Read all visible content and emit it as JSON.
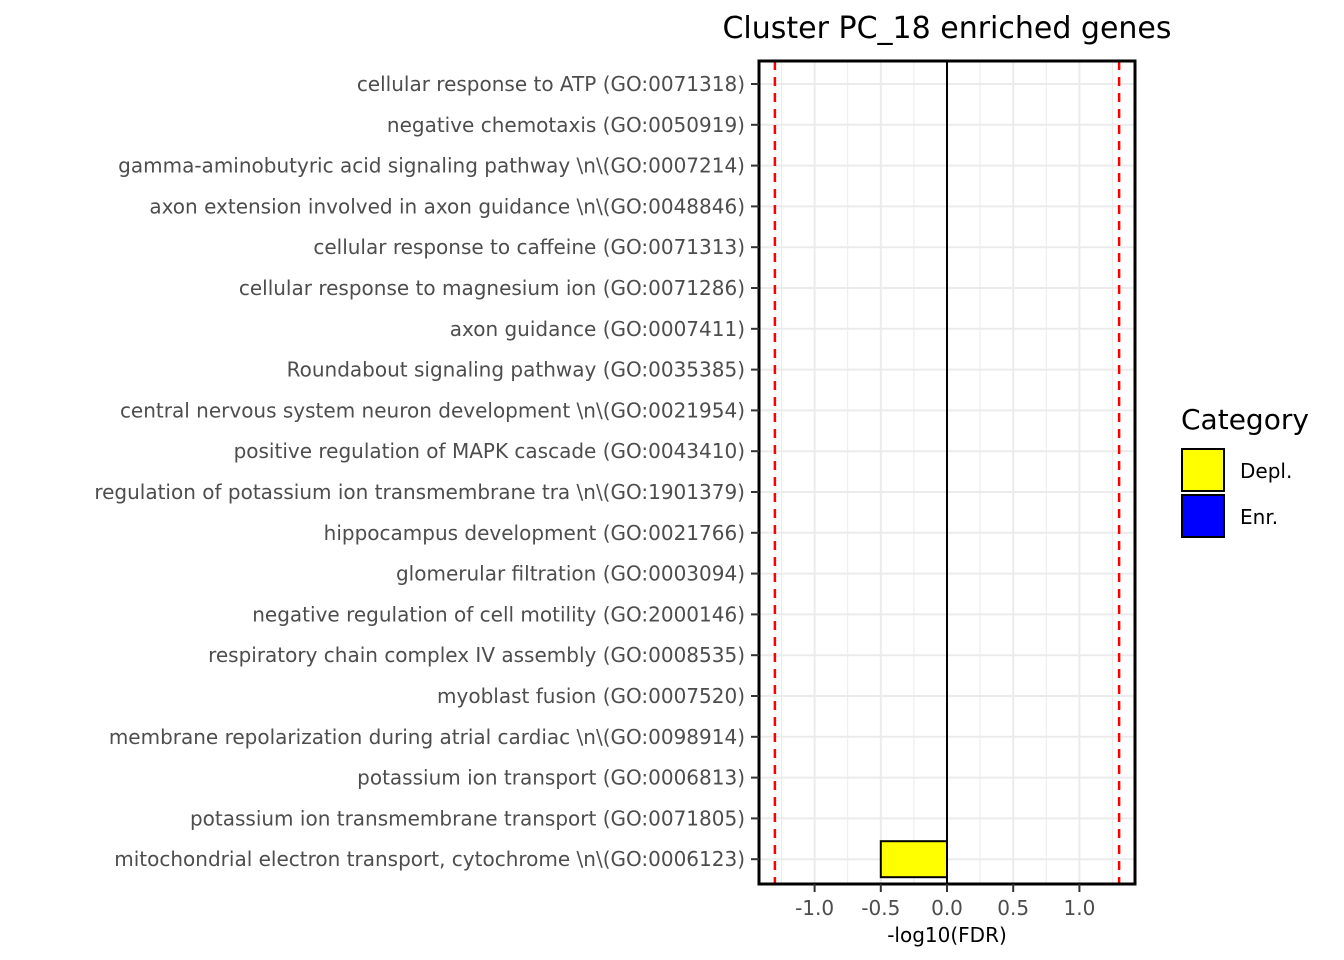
{
  "chart_data": {
    "type": "bar",
    "orientation": "horizontal",
    "title": "Cluster PC_18 enriched genes",
    "xlabel": "-log10(FDR)",
    "ylabel": "",
    "xlim": [
      -1.42,
      1.42
    ],
    "x_ticks": [
      -1.0,
      -0.5,
      0.0,
      0.5,
      1.0
    ],
    "x_tick_labels": [
      "-1.0",
      "-0.5",
      "0.0",
      "0.5",
      "1.0"
    ],
    "threshold_lines": [
      -1.3,
      1.3
    ],
    "threshold_color": "#ff0000",
    "zero_line": 0,
    "grid": true,
    "categories": [
      "cellular response to ATP (GO:0071318)",
      "negative chemotaxis (GO:0050919)",
      "gamma-aminobutyric acid signaling pathway  \\n\\(GO:0007214)",
      "axon extension involved in axon guidance  \\n\\(GO:0048846)",
      "cellular response to caffeine (GO:0071313)",
      "cellular response to magnesium ion (GO:0071286)",
      "axon guidance (GO:0007411)",
      "Roundabout signaling pathway (GO:0035385)",
      "central nervous system neuron development  \\n\\(GO:0021954)",
      "positive regulation of MAPK cascade (GO:0043410)",
      "regulation of potassium ion transmembrane tra \\n\\(GO:1901379)",
      "hippocampus development (GO:0021766)",
      "glomerular filtration (GO:0003094)",
      "negative regulation of cell motility (GO:2000146)",
      "respiratory chain complex IV assembly (GO:0008535)",
      "myoblast fusion (GO:0007520)",
      "membrane repolarization during atrial cardiac \\n\\(GO:0098914)",
      "potassium ion transport (GO:0006813)",
      "potassium ion transmembrane transport (GO:0071805)",
      "mitochondrial electron transport, cytochrome  \\n\\(GO:0006123)"
    ],
    "values": [
      0,
      0,
      0,
      0,
      0,
      0,
      0,
      0,
      0,
      0,
      0,
      0,
      0,
      0,
      0,
      0,
      0,
      0,
      0,
      -0.5
    ],
    "bar_categories": [
      "Depl.",
      "Depl.",
      "Depl.",
      "Depl.",
      "Depl.",
      "Depl.",
      "Depl.",
      "Depl.",
      "Depl.",
      "Depl.",
      "Depl.",
      "Depl.",
      "Depl.",
      "Depl.",
      "Depl.",
      "Depl.",
      "Depl.",
      "Depl.",
      "Depl.",
      "Depl."
    ],
    "legend": {
      "title": "Category",
      "placement": "right",
      "entries": [
        {
          "label": "Depl.",
          "color": "#ffff00"
        },
        {
          "label": "Enr.",
          "color": "#0000ff"
        }
      ]
    }
  }
}
